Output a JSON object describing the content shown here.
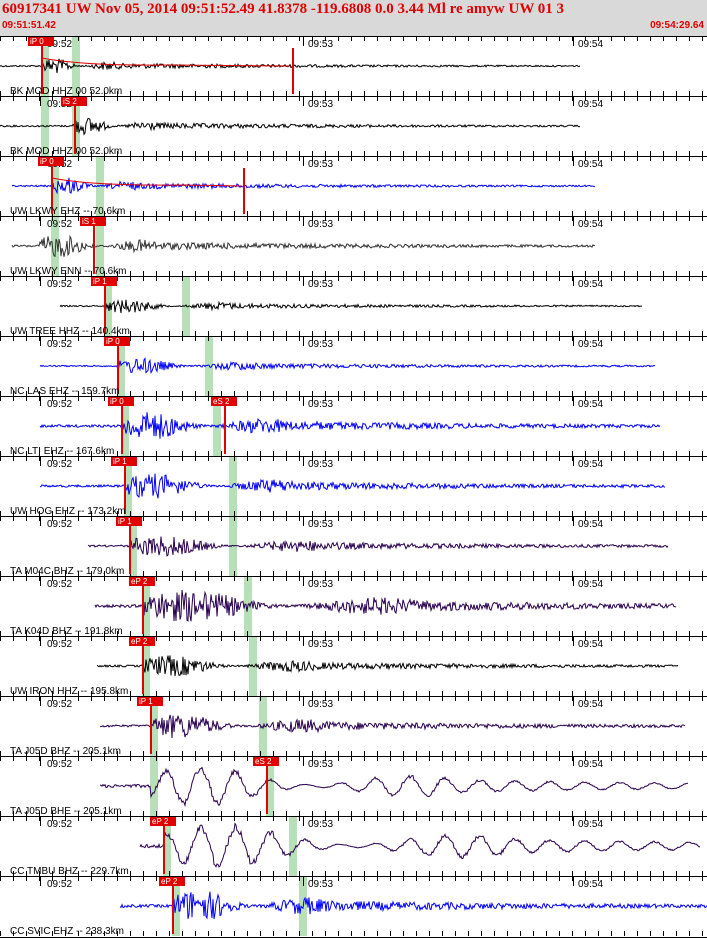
{
  "header": {
    "title": "60917341 UW Nov 05, 2014 09:51:52.49   41.8378 -119.6808  0.0 3.44 Ml re amyw UW 01   3",
    "start_time": "09:51:51.42",
    "end_time": "09:54:29.64"
  },
  "time_labels": [
    "09:52",
    "09:53",
    "09:54"
  ],
  "colors": {
    "header_bg": "#d9d9d9",
    "header_text": "#e00000",
    "pick_red": "#e00000",
    "shading_green": "#b8e0b8",
    "trace_black": "#000000",
    "trace_blue": "#0000ff",
    "trace_purple": "#2a0050",
    "trace_darkgray": "#333333"
  },
  "channels": [
    {
      "label": "BK MOD HHZ 00 52.0km",
      "color": "trace_black",
      "picks": [
        {
          "text": "iP 0"
        }
      ],
      "envelope": true,
      "spike": true
    },
    {
      "label": "BK MOD HHZ 00 52.0km",
      "color": "trace_black",
      "picks": [
        {
          "text": "iS 2"
        }
      ]
    },
    {
      "label": "UW LKWY EHZ -- 70.6km",
      "color": "trace_blue",
      "picks": [
        {
          "text": "iP 0"
        }
      ],
      "envelope": true,
      "spike": true
    },
    {
      "label": "UW LKWY ENN -- 70.6km",
      "color": "trace_darkgray",
      "picks": [
        {
          "text": "iS 1"
        }
      ]
    },
    {
      "label": "UW TREE HHZ -- 140.4km",
      "color": "trace_black",
      "picks": [
        {
          "text": "iP 1"
        }
      ]
    },
    {
      "label": "NC LAS EHZ -- 159.7km",
      "color": "trace_blue",
      "picks": [
        {
          "text": "iP 0"
        }
      ]
    },
    {
      "label": "NC LTI EHZ -- 167.6km",
      "color": "trace_blue",
      "picks": [
        {
          "text": "iP 0"
        },
        {
          "text": "eS 2"
        }
      ]
    },
    {
      "label": "UW HOG EHZ -- 173.2km",
      "color": "trace_blue",
      "picks": [
        {
          "text": "iP 1"
        }
      ]
    },
    {
      "label": "TA M04C BHZ -- 179.0km",
      "color": "trace_purple",
      "picks": [
        {
          "text": "iP 1"
        }
      ]
    },
    {
      "label": "TA K04D BHZ -- 191.8km",
      "color": "trace_purple",
      "picks": [
        {
          "text": "eP 2"
        }
      ]
    },
    {
      "label": "UW IRON HHZ -- 195.8km",
      "color": "trace_black",
      "picks": [
        {
          "text": "eP 2"
        }
      ]
    },
    {
      "label": "TA J05D BHZ -- 205.1km",
      "color": "trace_purple",
      "picks": [
        {
          "text": "iP 1"
        }
      ]
    },
    {
      "label": "TA J05D BHE -- 205.1km",
      "color": "trace_purple",
      "picks": [
        {
          "text": "eS 2"
        }
      ]
    },
    {
      "label": "CC TMBU BHZ -- 229.7km",
      "color": "trace_purple",
      "picks": [
        {
          "text": "eP 2"
        }
      ]
    },
    {
      "label": "CC SVIC EHZ -- 238.3km",
      "color": "trace_blue",
      "picks": [
        {
          "text": "eP 2"
        }
      ]
    }
  ]
}
